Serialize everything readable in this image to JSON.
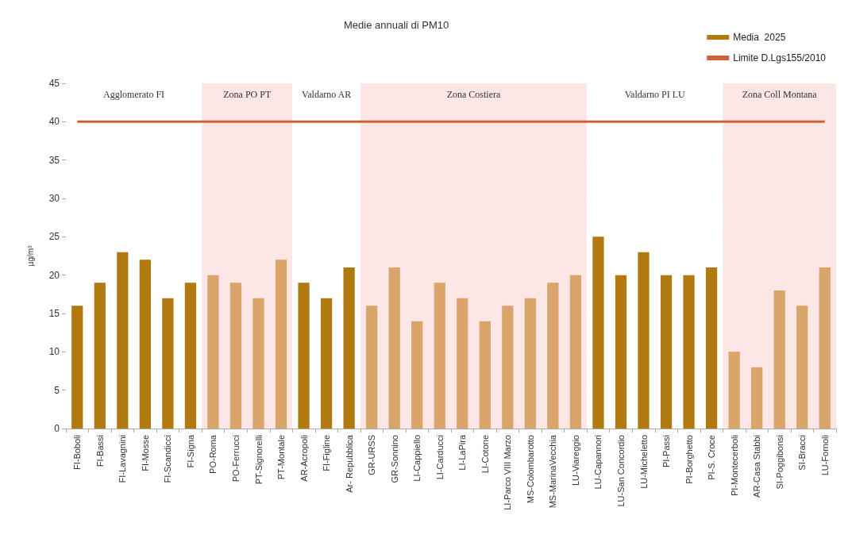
{
  "chart_data": {
    "type": "bar",
    "title": "Medie annuali di PM10",
    "ylabel": "µg/m³",
    "categories": [
      "FI-Boboli",
      "FI-Bassi",
      "FI-Lavagnini",
      "FI-Mosse",
      "FI-Scandicci",
      "FI-Signa",
      "PO-Roma",
      "PO-Ferrucci",
      "PT-Signorelli",
      "PT-Montale",
      "AR-Acropoli",
      "FI-Figline",
      "Ar- Repubblica",
      "GR-URSS",
      "GR-Sonnino",
      "LI-Cappiello",
      "LI-Carducci",
      "LI-LaPira",
      "LI-Cotone",
      "LI-Parco VIII Marzo",
      "MS-Colombarotto",
      "MS-MarinaVecchia",
      "LU-Viareggio",
      "LU-Capannori",
      "LU-San Concordio",
      "LU-Micheletto",
      "PI-Passi",
      "PI-Borghetto",
      "PI-S. Croce",
      "PI-Montecerboli",
      "AR-Casa Stabbi",
      "SI-Poggibonsi",
      "SI-Bracci",
      "LU-Fornoli"
    ],
    "series": [
      {
        "name": "Media  2025",
        "color": "#b07a10",
        "values": [
          16,
          19,
          23,
          22,
          17,
          19,
          20,
          19,
          17,
          22,
          19,
          17,
          21,
          16,
          21,
          14,
          19,
          17,
          14,
          16,
          17,
          19,
          20,
          25,
          20,
          23,
          20,
          20,
          21,
          10,
          8,
          18,
          16,
          21
        ],
        "colors": [
          "#b07a10",
          "#b07a10",
          "#b07a10",
          "#b07a10",
          "#b07a10",
          "#b07a10",
          "#d9a56a",
          "#d9a56a",
          "#d9a56a",
          "#d9a56a",
          "#b07a10",
          "#b07a10",
          "#b07a10",
          "#d9a56a",
          "#d9a56a",
          "#d9a56a",
          "#d9a56a",
          "#d9a56a",
          "#d9a56a",
          "#d9a56a",
          "#d9a56a",
          "#d9a56a",
          "#d9a56a",
          "#b07a10",
          "#b07a10",
          "#b07a10",
          "#b07a10",
          "#b07a10",
          "#b07a10",
          "#d9a56a",
          "#d9a56a",
          "#d9a56a",
          "#d9a56a",
          "#d9a56a"
        ]
      },
      {
        "name": "Limite D.Lgs155/2010",
        "type": "line",
        "color": "#d0603a",
        "values": [
          40,
          40,
          40,
          40,
          40,
          40,
          40,
          40,
          40,
          40,
          40,
          40,
          40,
          40,
          40,
          40,
          40,
          40,
          40,
          40,
          40,
          40,
          40,
          40,
          40,
          40,
          40,
          40,
          40,
          40,
          40,
          40,
          40,
          40
        ]
      }
    ],
    "bands": [
      {
        "axis": "x",
        "from": "FI-Boboli",
        "to": "FI-Signa",
        "label": "Agglomerato FI",
        "color": "#ffffff"
      },
      {
        "axis": "x",
        "from": "PO-Roma",
        "to": "PT-Montale",
        "label": "Zona PO PT",
        "color": "#fde6e6"
      },
      {
        "axis": "x",
        "from": "AR-Acropoli",
        "to": "Ar- Repubblica",
        "label": "Valdarno AR",
        "color": "#ffffff"
      },
      {
        "axis": "x",
        "from": "GR-URSS",
        "to": "LU-Viareggio",
        "label": "Zona Costiera",
        "color": "#fde6e6"
      },
      {
        "axis": "x",
        "from": "LU-Capannori",
        "to": "PI-S. Croce",
        "label": "Valdarno PI LU",
        "color": "#ffffff"
      },
      {
        "axis": "x",
        "from": "PI-Montecerboli",
        "to": "LU-Fornoli",
        "label": "Zona Coll Montana",
        "color": "#fde6e6"
      }
    ],
    "ylim": [
      0,
      45
    ],
    "yticks": [
      0,
      5,
      10,
      15,
      20,
      25,
      30,
      35,
      40,
      45
    ],
    "grid": "y",
    "legend": "top right"
  }
}
